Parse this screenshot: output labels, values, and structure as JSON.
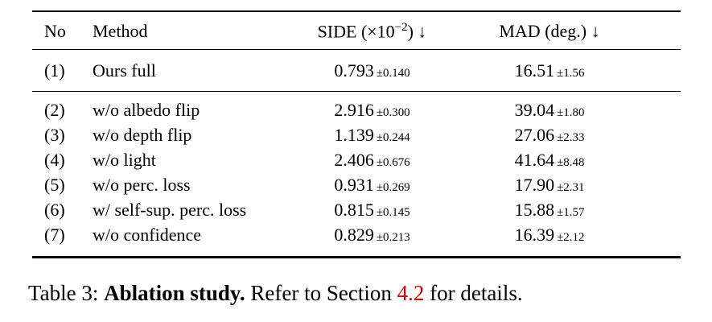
{
  "page": {
    "background": "#ffffff"
  },
  "table": {
    "header": {
      "no": "No",
      "method": "Method",
      "side_prefix": "SIDE (×10",
      "side_sup": "−2",
      "side_suffix": ") ↓",
      "mad": "MAD (deg.) ↓"
    },
    "rows": [
      {
        "no": "(1)",
        "method": "Ours full",
        "side": "0.793",
        "side_err": "±0.140",
        "mad": "16.51",
        "mad_err": "±1.56"
      },
      {
        "no": "(2)",
        "method": "w/o albedo flip",
        "side": "2.916",
        "side_err": "±0.300",
        "mad": "39.04",
        "mad_err": "±1.80"
      },
      {
        "no": "(3)",
        "method": "w/o depth flip",
        "side": "1.139",
        "side_err": "±0.244",
        "mad": "27.06",
        "mad_err": "±2.33"
      },
      {
        "no": "(4)",
        "method": "w/o light",
        "side": "2.406",
        "side_err": "±0.676",
        "mad": "41.64",
        "mad_err": "±8.48"
      },
      {
        "no": "(5)",
        "method": "w/o perc. loss",
        "side": "0.931",
        "side_err": "±0.269",
        "mad": "17.90",
        "mad_err": "±2.31"
      },
      {
        "no": "(6)",
        "method": "w/ self-sup. perc. loss",
        "side": "0.815",
        "side_err": "±0.145",
        "mad": "15.88",
        "mad_err": "±1.57"
      },
      {
        "no": "(7)",
        "method": "w/o confidence",
        "side": "0.829",
        "side_err": "±0.213",
        "mad": "16.39",
        "mad_err": "±2.12"
      }
    ]
  },
  "caption": {
    "prefix": "Table 3: ",
    "bold": "Ablation study.",
    "middle": " Refer to Section ",
    "link": "4.2",
    "suffix": " for details.",
    "link_color": "#d80000"
  }
}
